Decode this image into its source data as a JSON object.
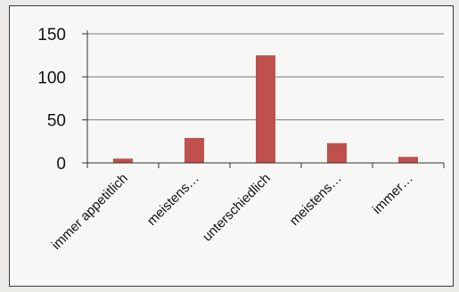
{
  "chart_data": {
    "type": "bar",
    "categories": [
      "immer appetitlich",
      "meistens…",
      "unterschiedlich",
      "meistens…",
      "immer…"
    ],
    "values": [
      5,
      29,
      125,
      23,
      7
    ],
    "ylim": [
      0,
      150
    ],
    "yticks": [
      0,
      50,
      100,
      150
    ],
    "title": "",
    "xlabel": "",
    "ylabel": "",
    "grid": true,
    "legend": "none",
    "bar_color": "#c0504d",
    "grid_color": "#7a7a7a"
  }
}
